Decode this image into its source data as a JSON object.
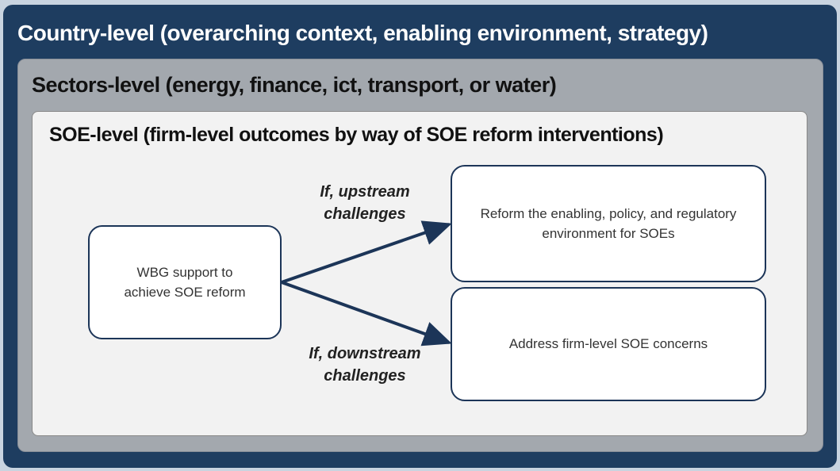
{
  "levels": {
    "country": "Country-level (overarching context, enabling environment, strategy)",
    "sectors": "Sectors-level (energy, finance, ict, transport, or water)",
    "soe": "SOE-level (firm-level outcomes by way of SOE reform interventions)"
  },
  "nodes": [
    {
      "label": "WBG support to achieve SOE reform"
    },
    {
      "label": "Reform the enabling, policy, and regulatory environment for SOEs"
    },
    {
      "label": "Address firm-level SOE concerns"
    }
  ],
  "edges": [
    {
      "label": "If, upstream challenges"
    },
    {
      "label": "If, downstream challenges"
    }
  ]
}
